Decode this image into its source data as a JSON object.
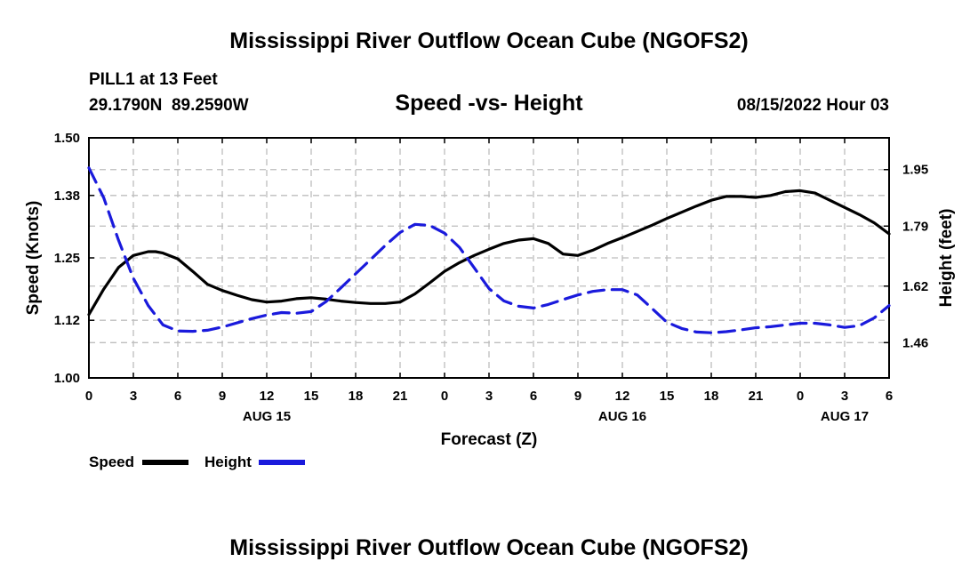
{
  "page": {
    "title_top": "Mississippi River Outflow Ocean Cube (NGOFS2)",
    "title_bottom": "Mississippi River Outflow Ocean Cube (NGOFS2)"
  },
  "station": {
    "name_line": "PILL1 at 13 Feet",
    "coords_line": "29.1790N  89.2590W"
  },
  "chart_data": {
    "type": "line",
    "title": "Speed -vs- Height",
    "date_label": "08/15/2022 Hour 03",
    "xlabel": "Forecast (Z)",
    "ylabel_left": "Speed (Knots)",
    "ylabel_right": "Height (feet)",
    "x_range_hours": [
      0,
      54
    ],
    "x_ticks": [
      {
        "hour": 0,
        "label": "0"
      },
      {
        "hour": 3,
        "label": "3"
      },
      {
        "hour": 6,
        "label": "6"
      },
      {
        "hour": 9,
        "label": "9"
      },
      {
        "hour": 12,
        "label": "12"
      },
      {
        "hour": 15,
        "label": "15"
      },
      {
        "hour": 18,
        "label": "18"
      },
      {
        "hour": 21,
        "label": "21"
      },
      {
        "hour": 24,
        "label": "0"
      },
      {
        "hour": 27,
        "label": "3"
      },
      {
        "hour": 30,
        "label": "6"
      },
      {
        "hour": 33,
        "label": "9"
      },
      {
        "hour": 36,
        "label": "12"
      },
      {
        "hour": 39,
        "label": "15"
      },
      {
        "hour": 42,
        "label": "18"
      },
      {
        "hour": 45,
        "label": "21"
      },
      {
        "hour": 48,
        "label": "0"
      },
      {
        "hour": 51,
        "label": "3"
      },
      {
        "hour": 54,
        "label": "6"
      }
    ],
    "date_ticks": [
      {
        "hour": 12,
        "label": "AUG 15"
      },
      {
        "hour": 36,
        "label": "AUG 16"
      },
      {
        "hour": 51,
        "label": "AUG 17"
      }
    ],
    "y_left": {
      "min": 1.0,
      "max": 1.5,
      "ticks": [
        "1.00",
        "1.12",
        "1.25",
        "1.38",
        "1.50"
      ]
    },
    "y_right": {
      "min": 1.36,
      "max": 2.04,
      "ticks": [
        "1.46",
        "1.62",
        "1.79",
        "1.95"
      ]
    },
    "grid": true,
    "legend_position": "bottom-left",
    "series": [
      {
        "name": "Speed",
        "color": "#000000",
        "dash": "solid",
        "axis": "left",
        "x": [
          0,
          1,
          2,
          3,
          4,
          4.5,
          5,
          6,
          7,
          8,
          9,
          10,
          11,
          12,
          13,
          14,
          15,
          16,
          17,
          18,
          19,
          20,
          21,
          22,
          23,
          24,
          25,
          26,
          27,
          28,
          29,
          30,
          31,
          32,
          33,
          34,
          35,
          36,
          37,
          38,
          39,
          40,
          41,
          42,
          43,
          44,
          45,
          46,
          47,
          48,
          49,
          50,
          51,
          52,
          53,
          54
        ],
        "values": [
          1.132,
          1.185,
          1.23,
          1.255,
          1.263,
          1.263,
          1.26,
          1.248,
          1.222,
          1.195,
          1.182,
          1.172,
          1.163,
          1.158,
          1.16,
          1.165,
          1.167,
          1.164,
          1.16,
          1.157,
          1.155,
          1.155,
          1.158,
          1.175,
          1.198,
          1.222,
          1.24,
          1.255,
          1.268,
          1.28,
          1.287,
          1.29,
          1.28,
          1.258,
          1.255,
          1.266,
          1.28,
          1.292,
          1.305,
          1.318,
          1.332,
          1.345,
          1.358,
          1.37,
          1.378,
          1.378,
          1.376,
          1.38,
          1.388,
          1.39,
          1.385,
          1.37,
          1.355,
          1.34,
          1.323,
          1.3
        ]
      },
      {
        "name": "Height",
        "color": "#1a1adc",
        "dash": "dashed",
        "axis": "right",
        "x": [
          0,
          1,
          2,
          3,
          4,
          5,
          6,
          7,
          8,
          9,
          10,
          11,
          12,
          13,
          14,
          15,
          16,
          17,
          18,
          19,
          20,
          21,
          22,
          23,
          24,
          25,
          26,
          27,
          28,
          29,
          30,
          31,
          32,
          33,
          34,
          35,
          36,
          37,
          38,
          39,
          40,
          41,
          42,
          43,
          44,
          45,
          46,
          47,
          48,
          49,
          50,
          51,
          52,
          53,
          54
        ],
        "values": [
          1.955,
          1.87,
          1.75,
          1.642,
          1.565,
          1.51,
          1.493,
          1.492,
          1.495,
          1.504,
          1.516,
          1.528,
          1.538,
          1.545,
          1.543,
          1.548,
          1.576,
          1.615,
          1.655,
          1.695,
          1.735,
          1.772,
          1.795,
          1.792,
          1.77,
          1.73,
          1.672,
          1.613,
          1.578,
          1.563,
          1.558,
          1.568,
          1.582,
          1.595,
          1.605,
          1.61,
          1.61,
          1.595,
          1.557,
          1.518,
          1.5,
          1.49,
          1.488,
          1.491,
          1.496,
          1.502,
          1.505,
          1.51,
          1.515,
          1.515,
          1.51,
          1.503,
          1.508,
          1.53,
          1.565
        ]
      }
    ],
    "legend": [
      {
        "label": "Speed",
        "color": "#000000"
      },
      {
        "label": "Height",
        "color": "#1a1adc"
      }
    ]
  }
}
